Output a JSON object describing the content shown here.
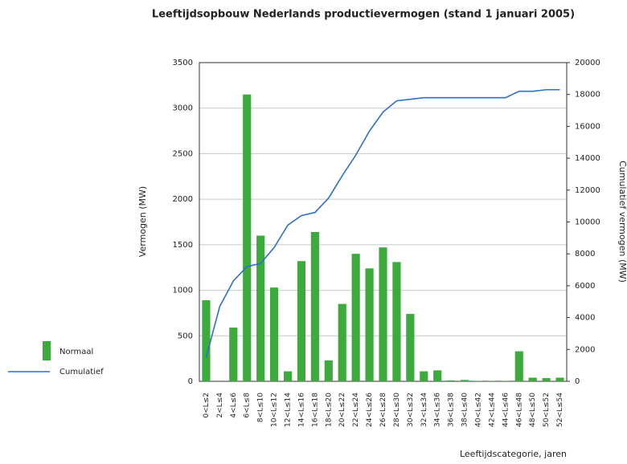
{
  "chart_data": {
    "type": "bar-line",
    "title": "Leeftijdsopbouw Nederlands productievermogen (stand 1 januari 2005)",
    "y_label": "Vermogen (MW)",
    "y2_label": "Cumulatief vermogen (MW)",
    "x_label": "Leeftijdscategorie, jaren",
    "categories": [
      "0<L≤2",
      "2<L≤4",
      "4<L≤6",
      "6<L≤8",
      "8<L≤10",
      "10<L≤12",
      "12<L≤14",
      "14<L≤16",
      "16<L≤18",
      "18<L≤20",
      "20<L≤22",
      "22<L≤24",
      "24<L≤26",
      "26<L≤28",
      "28<L≤30",
      "30<L≤32",
      "32<L≤34",
      "34<L≤36",
      "36<L≤38",
      "38<L≤40",
      "40<L≤42",
      "42<L≤44",
      "44<L≤46",
      "46<L≤48",
      "48<L≤50",
      "50<L≤52",
      "52<L≤54"
    ],
    "series": [
      {
        "name": "Normaal",
        "type": "bar",
        "color": "#3caa3c",
        "values": [
          890,
          0,
          590,
          3150,
          1600,
          1030,
          110,
          1320,
          1640,
          230,
          850,
          1400,
          1240,
          1470,
          1310,
          740,
          110,
          120,
          10,
          15,
          5,
          5,
          5,
          330,
          40,
          35,
          40
        ]
      },
      {
        "name": "Cumulatief",
        "type": "line",
        "axis": "y2",
        "color": "#2f6fd0",
        "values": [
          1500,
          4700,
          6300,
          7200,
          7400,
          8400,
          9800,
          10400,
          10600,
          11500,
          12900,
          14200,
          15700,
          16900,
          17600,
          17700,
          17800,
          17800,
          17800,
          17800,
          17800,
          17800,
          17800,
          18200,
          18200,
          18300,
          18300
        ]
      }
    ],
    "ylim": [
      0,
      3500
    ],
    "yticks": [
      0,
      500,
      1000,
      1500,
      2000,
      2500,
      3000,
      3500
    ],
    "y2lim": [
      0,
      20000
    ],
    "y2ticks": [
      0,
      2000,
      4000,
      6000,
      8000,
      10000,
      12000,
      14000,
      16000,
      18000,
      20000
    ],
    "grid": true,
    "legend": "left"
  }
}
